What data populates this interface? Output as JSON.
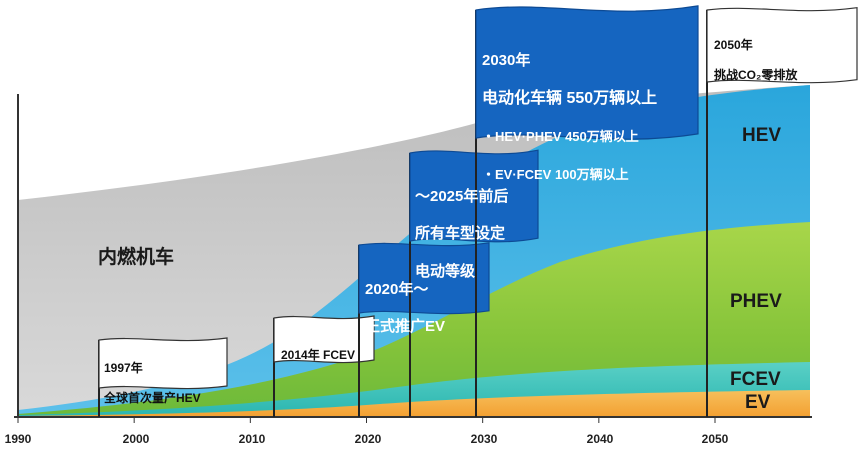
{
  "chart_data": {
    "type": "area",
    "x_ticks": [
      1990,
      2000,
      2010,
      2020,
      2030,
      2040,
      2050
    ],
    "xlim": [
      1990,
      2058
    ],
    "series": [
      {
        "name": "内燃机车",
        "color": "#c8c8c8"
      },
      {
        "name": "HEV",
        "color": "#2aa6dc"
      },
      {
        "name": "PHEV",
        "color": "#86c43a"
      },
      {
        "name": "FCEV",
        "color": "#2bb6b0"
      },
      {
        "name": "EV",
        "color": "#f3a133"
      }
    ],
    "milestones": [
      {
        "year": 1997,
        "style": "white",
        "lines": [
          "1997年",
          "全球首次量产HEV"
        ]
      },
      {
        "year": 2014,
        "style": "white",
        "lines": [
          "2014年  FCEV"
        ]
      },
      {
        "year": 2020,
        "style": "blue",
        "lines": [
          "2020年～",
          "正式推广EV"
        ]
      },
      {
        "year": 2025,
        "style": "blue",
        "lines": [
          "～2025年前后",
          "所有车型设定",
          "电动等级"
        ]
      },
      {
        "year": 2030,
        "style": "blue",
        "lines": [
          "2030年",
          "电动化车辆  550万辆以上",
          "・HEV·PHEV  450万辆以上",
          "・EV·FCEV   100万辆以上"
        ]
      },
      {
        "year": 2050,
        "style": "white",
        "lines": [
          "2050年",
          "挑战CO₂零排放"
        ]
      }
    ]
  }
}
